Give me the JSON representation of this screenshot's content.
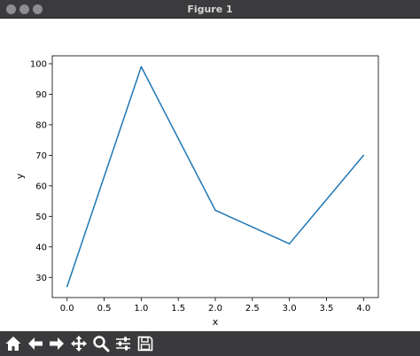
{
  "window": {
    "title": "Figure 1"
  },
  "toolbar": {
    "buttons": [
      {
        "name": "home",
        "icon": "home-icon"
      },
      {
        "name": "back",
        "icon": "arrow-left-icon"
      },
      {
        "name": "forward",
        "icon": "arrow-right-icon"
      },
      {
        "name": "pan",
        "icon": "move-icon"
      },
      {
        "name": "zoom",
        "icon": "magnifier-icon"
      },
      {
        "name": "configure-subplots",
        "icon": "sliders-icon"
      },
      {
        "name": "save",
        "icon": "floppy-disk-icon"
      }
    ]
  },
  "colors": {
    "line": "#1f77b4",
    "titlebar": "#3b3b3d",
    "toolbar": "#3a3a3c"
  },
  "chart_data": {
    "type": "line",
    "title": "",
    "xlabel": "x",
    "ylabel": "y",
    "x": [
      0.0,
      1.0,
      2.0,
      3.0,
      4.0
    ],
    "series": [
      {
        "values": [
          27,
          99,
          52,
          41,
          70
        ]
      }
    ],
    "xlim": [
      -0.2,
      4.2
    ],
    "ylim": [
      23.4,
      102.6
    ],
    "xticks": [
      0.0,
      0.5,
      1.0,
      1.5,
      2.0,
      2.5,
      3.0,
      3.5,
      4.0
    ],
    "xtick_labels": [
      "0.0",
      "0.5",
      "1.0",
      "1.5",
      "2.0",
      "2.5",
      "3.0",
      "3.5",
      "4.0"
    ],
    "yticks": [
      30,
      40,
      50,
      60,
      70,
      80,
      90,
      100
    ],
    "ytick_labels": [
      "30",
      "40",
      "50",
      "60",
      "70",
      "80",
      "90",
      "100"
    ],
    "grid": false,
    "legend": "none"
  }
}
